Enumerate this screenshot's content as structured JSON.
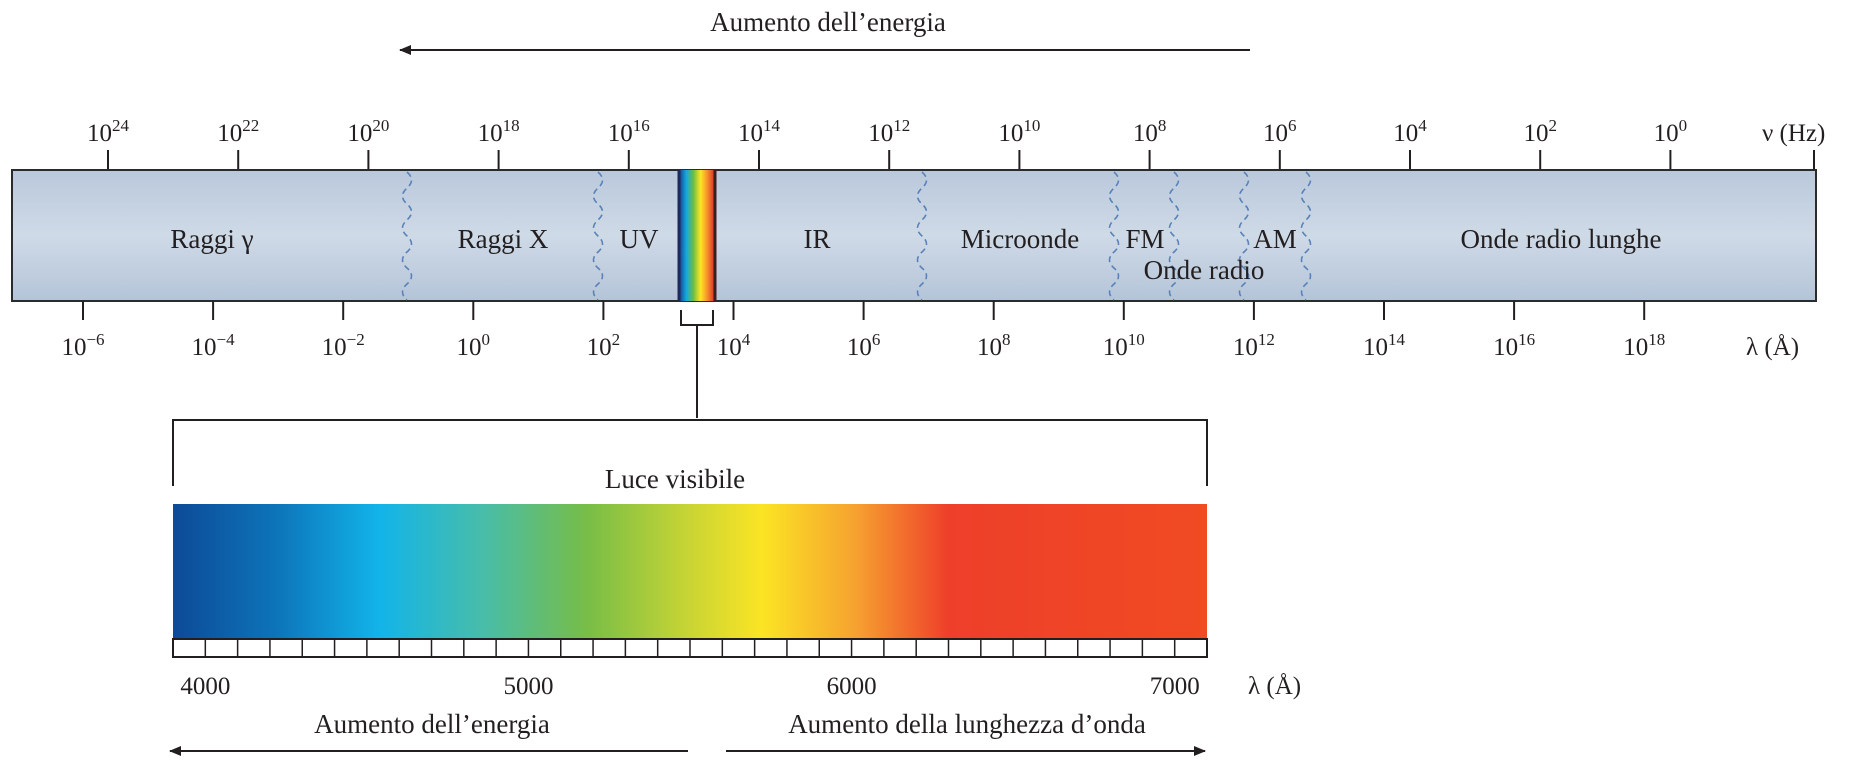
{
  "title_top": "Aumento dell’energia",
  "frequency_axis": {
    "unit_label": "ν (Hz)",
    "ticks": [
      {
        "base": "10",
        "exp": "24"
      },
      {
        "base": "10",
        "exp": "22"
      },
      {
        "base": "10",
        "exp": "20"
      },
      {
        "base": "10",
        "exp": "18"
      },
      {
        "base": "10",
        "exp": "16"
      },
      {
        "base": "10",
        "exp": "14"
      },
      {
        "base": "10",
        "exp": "12"
      },
      {
        "base": "10",
        "exp": "10"
      },
      {
        "base": "10",
        "exp": "8"
      },
      {
        "base": "10",
        "exp": "6"
      },
      {
        "base": "10",
        "exp": "4"
      },
      {
        "base": "10",
        "exp": "2"
      },
      {
        "base": "10",
        "exp": "0"
      }
    ]
  },
  "wavelength_axis": {
    "unit_label": "λ (Å)",
    "ticks": [
      {
        "base": "10",
        "exp": "−6"
      },
      {
        "base": "10",
        "exp": "−4"
      },
      {
        "base": "10",
        "exp": "−2"
      },
      {
        "base": "10",
        "exp": "0"
      },
      {
        "base": "10",
        "exp": "2"
      },
      {
        "base": "10",
        "exp": "4"
      },
      {
        "base": "10",
        "exp": "6"
      },
      {
        "base": "10",
        "exp": "8"
      },
      {
        "base": "10",
        "exp": "10"
      },
      {
        "base": "10",
        "exp": "12"
      },
      {
        "base": "10",
        "exp": "14"
      },
      {
        "base": "10",
        "exp": "16"
      },
      {
        "base": "10",
        "exp": "18"
      }
    ]
  },
  "regions": {
    "gamma": "Raggi γ",
    "xray": "Raggi X",
    "uv": "UV",
    "ir": "IR",
    "microwave": "Microonde",
    "fm": "FM",
    "am": "AM",
    "radio": "Onde radio",
    "long_radio": "Onde radio lunghe"
  },
  "visible": {
    "title": "Luce visibile",
    "unit_label": "λ (Å)",
    "ticks": [
      "4000",
      "5000",
      "6000",
      "7000"
    ],
    "range": [
      3900,
      7100
    ],
    "arrow_left": "Aumento dell’energia",
    "arrow_right": "Aumento della lunghezza d’onda"
  },
  "colors": {
    "band_fill": "#c3d0e0",
    "band_edge": "#2b2b2b",
    "divider": "#5a82b8",
    "spectrum": [
      "#0f4d9a",
      "#0e7cc0",
      "#12b6ea",
      "#4dbfae",
      "#76bd48",
      "#c8d535",
      "#fbe424",
      "#f7a331",
      "#ee3d2b",
      "#f04b23"
    ]
  }
}
